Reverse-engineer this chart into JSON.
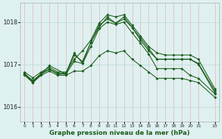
{
  "title": "Graphe pression niveau de la mer (hPa)",
  "bg_color": "#dff0f0",
  "grid_color_v": "#e8b0b0",
  "grid_color_h": "#b8d8d8",
  "line_color": "#1a5c1a",
  "ylim": [
    1015.65,
    1018.45
  ],
  "yticks": [
    1016,
    1017,
    1018
  ],
  "xlim": [
    -0.5,
    23.5
  ],
  "figsize": [
    3.2,
    2.0
  ],
  "dpi": 100,
  "lines": [
    {
      "x": [
        0,
        1,
        2,
        3,
        4,
        5,
        6,
        7,
        8,
        9,
        10,
        11,
        12,
        13,
        14,
        15,
        16,
        17,
        18,
        19,
        20,
        21,
        23
      ],
      "y": [
        1016.82,
        1016.68,
        1016.82,
        1016.93,
        1016.82,
        1016.82,
        1017.12,
        1017.32,
        1017.57,
        1017.97,
        1018.17,
        1018.12,
        1018.17,
        1017.92,
        1017.67,
        1017.42,
        1017.27,
        1017.22,
        1017.22,
        1017.22,
        1017.22,
        1017.12,
        1016.42
      ]
    },
    {
      "x": [
        0,
        1,
        2,
        3,
        4,
        5,
        6,
        7,
        8,
        9,
        10,
        11,
        12,
        13,
        14,
        15,
        16,
        17,
        18,
        19,
        20,
        21,
        23
      ],
      "y": [
        1016.77,
        1016.62,
        1016.77,
        1016.88,
        1016.77,
        1016.77,
        1017.07,
        1017.02,
        1017.52,
        1017.92,
        1018.07,
        1017.97,
        1018.07,
        1017.87,
        1017.57,
        1017.32,
        1017.12,
        1017.12,
        1017.12,
        1017.12,
        1017.12,
        1017.02,
        1016.37
      ]
    },
    {
      "x": [
        0,
        1,
        2,
        3,
        4,
        5,
        6,
        7,
        8,
        9,
        10,
        11,
        12,
        13,
        14,
        15,
        16,
        17,
        18,
        19,
        20,
        21,
        23
      ],
      "y": [
        1016.79,
        1016.59,
        1016.79,
        1016.89,
        1016.79,
        1016.79,
        1017.27,
        1017.02,
        1017.42,
        1017.84,
        1018.0,
        1017.94,
        1018.0,
        1017.74,
        1017.5,
        1017.24,
        1016.9,
        1016.9,
        1016.9,
        1016.9,
        1016.74,
        1016.67,
        1016.3
      ]
    },
    {
      "x": [
        0,
        1,
        2,
        3,
        4,
        5,
        6,
        7,
        8,
        9,
        10,
        11,
        12,
        13,
        14,
        15,
        16,
        17,
        18,
        19,
        20,
        21,
        23
      ],
      "y": [
        1016.74,
        1016.57,
        1016.74,
        1016.84,
        1016.74,
        1016.74,
        1016.84,
        1016.84,
        1016.97,
        1017.2,
        1017.32,
        1017.27,
        1017.32,
        1017.12,
        1016.97,
        1016.82,
        1016.67,
        1016.67,
        1016.67,
        1016.67,
        1016.62,
        1016.57,
        1016.22
      ]
    },
    {
      "x": [
        0,
        1,
        3,
        5,
        6,
        7,
        8,
        9,
        10,
        11,
        12,
        13,
        14,
        15,
        16,
        17,
        19,
        20,
        21,
        23
      ],
      "y": [
        1016.77,
        1016.57,
        1016.97,
        1016.77,
        1017.22,
        1017.07,
        1017.52,
        1017.87,
        1018.12,
        1017.97,
        1018.12,
        1017.87,
        1017.62,
        1017.37,
        1017.12,
        1017.12,
        1017.12,
        1017.12,
        1017.0,
        1016.32
      ]
    }
  ]
}
